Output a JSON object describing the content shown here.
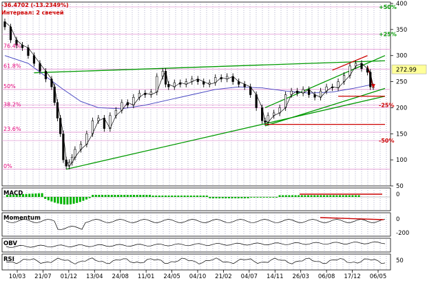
{
  "header": {
    "change": "-36.4702 (-13.2349%)",
    "interval": "Интервал: 2 свечей",
    "change_color": "#cc0000",
    "interval_color": "#cc0000"
  },
  "chart_data": [
    {
      "type": "candlestick",
      "name": "price",
      "ylim": [
        50,
        400
      ],
      "ytick_labels": [
        "50",
        "100",
        "150",
        "200",
        "250",
        "300",
        "350",
        "400"
      ],
      "ytick_values": [
        50,
        100,
        150,
        200,
        250,
        300,
        350,
        400
      ],
      "xtick_labels": [
        "10/03",
        "21/07",
        "01/12",
        "13/04",
        "24/08",
        "11/01",
        "24/05",
        "04/10",
        "21/02",
        "04/07",
        "14/11",
        "26/03",
        "06/08",
        "17/12",
        "06/05"
      ],
      "last_price": "272.99",
      "last_price_color": "#ffff99",
      "fibonacci_levels": [
        {
          "label": "76.4%",
          "value": 312
        },
        {
          "label": "61.8%",
          "value": 274
        },
        {
          "label": "50%",
          "value": 235
        },
        {
          "label": "38.2%",
          "value": 200
        },
        {
          "label": "23.6%",
          "value": 153
        },
        {
          "label": "0%",
          "value": 82
        }
      ],
      "percent_levels": [
        {
          "label": "+50%",
          "value": 410,
          "color": "#009900"
        },
        {
          "label": "+25%",
          "value": 341,
          "color": "#009900"
        },
        {
          "label": "-25%",
          "value": 205,
          "color": "#cc0000"
        },
        {
          "label": "-50%",
          "value": 137,
          "color": "#cc0000"
        }
      ],
      "price_series": [
        {
          "x": 0,
          "y": 365
        },
        {
          "x": 2,
          "y": 355
        },
        {
          "x": 4,
          "y": 330
        },
        {
          "x": 6,
          "y": 320
        },
        {
          "x": 8,
          "y": 315
        },
        {
          "x": 10,
          "y": 300
        },
        {
          "x": 12,
          "y": 285
        },
        {
          "x": 14,
          "y": 270
        },
        {
          "x": 16,
          "y": 255
        },
        {
          "x": 17,
          "y": 240
        },
        {
          "x": 18,
          "y": 210
        },
        {
          "x": 19,
          "y": 180
        },
        {
          "x": 20,
          "y": 150
        },
        {
          "x": 21,
          "y": 100
        },
        {
          "x": 22,
          "y": 88
        },
        {
          "x": 23,
          "y": 95
        },
        {
          "x": 24,
          "y": 105
        },
        {
          "x": 26,
          "y": 120
        },
        {
          "x": 28,
          "y": 130
        },
        {
          "x": 30,
          "y": 150
        },
        {
          "x": 32,
          "y": 175
        },
        {
          "x": 34,
          "y": 180
        },
        {
          "x": 36,
          "y": 160
        },
        {
          "x": 38,
          "y": 185
        },
        {
          "x": 40,
          "y": 195
        },
        {
          "x": 42,
          "y": 210
        },
        {
          "x": 44,
          "y": 205
        },
        {
          "x": 46,
          "y": 220
        },
        {
          "x": 48,
          "y": 228
        },
        {
          "x": 50,
          "y": 225
        },
        {
          "x": 52,
          "y": 230
        },
        {
          "x": 54,
          "y": 260
        },
        {
          "x": 55,
          "y": 270
        },
        {
          "x": 56,
          "y": 245
        },
        {
          "x": 58,
          "y": 240
        },
        {
          "x": 60,
          "y": 248
        },
        {
          "x": 62,
          "y": 245
        },
        {
          "x": 64,
          "y": 250
        },
        {
          "x": 66,
          "y": 255
        },
        {
          "x": 68,
          "y": 250
        },
        {
          "x": 70,
          "y": 245
        },
        {
          "x": 72,
          "y": 248
        },
        {
          "x": 74,
          "y": 258
        },
        {
          "x": 76,
          "y": 255
        },
        {
          "x": 78,
          "y": 260
        },
        {
          "x": 80,
          "y": 250
        },
        {
          "x": 82,
          "y": 245
        },
        {
          "x": 84,
          "y": 240
        },
        {
          "x": 86,
          "y": 225
        },
        {
          "x": 88,
          "y": 200
        },
        {
          "x": 89,
          "y": 175
        },
        {
          "x": 90,
          "y": 172
        },
        {
          "x": 92,
          "y": 185
        },
        {
          "x": 94,
          "y": 190
        },
        {
          "x": 96,
          "y": 200
        },
        {
          "x": 98,
          "y": 225
        },
        {
          "x": 100,
          "y": 232
        },
        {
          "x": 102,
          "y": 228
        },
        {
          "x": 104,
          "y": 235
        },
        {
          "x": 106,
          "y": 225
        },
        {
          "x": 108,
          "y": 220
        },
        {
          "x": 110,
          "y": 232
        },
        {
          "x": 112,
          "y": 240
        },
        {
          "x": 114,
          "y": 238
        },
        {
          "x": 116,
          "y": 250
        },
        {
          "x": 118,
          "y": 262
        },
        {
          "x": 120,
          "y": 280
        },
        {
          "x": 122,
          "y": 285
        },
        {
          "x": 124,
          "y": 275
        },
        {
          "x": 125,
          "y": 268
        },
        {
          "x": 126,
          "y": 240
        }
      ],
      "ma_series": [
        {
          "x": 0,
          "y": 300
        },
        {
          "x": 8,
          "y": 285
        },
        {
          "x": 14,
          "y": 260
        },
        {
          "x": 20,
          "y": 235
        },
        {
          "x": 26,
          "y": 212
        },
        {
          "x": 32,
          "y": 200
        },
        {
          "x": 40,
          "y": 198
        },
        {
          "x": 48,
          "y": 205
        },
        {
          "x": 56,
          "y": 215
        },
        {
          "x": 64,
          "y": 225
        },
        {
          "x": 72,
          "y": 235
        },
        {
          "x": 80,
          "y": 240
        },
        {
          "x": 88,
          "y": 238
        },
        {
          "x": 96,
          "y": 232
        },
        {
          "x": 104,
          "y": 228
        },
        {
          "x": 112,
          "y": 230
        },
        {
          "x": 120,
          "y": 238
        },
        {
          "x": 126,
          "y": 245
        }
      ],
      "trendlines": [
        {
          "x1": 21,
          "y1": 82,
          "x2": 130,
          "y2": 222,
          "color": "#009900"
        },
        {
          "x1": 89,
          "y1": 165,
          "x2": 130,
          "y2": 237,
          "color": "#009900"
        },
        {
          "x1": 89,
          "y1": 200,
          "x2": 130,
          "y2": 300,
          "color": "#009900"
        },
        {
          "x1": 10,
          "y1": 267,
          "x2": 130,
          "y2": 290,
          "color": "#009900"
        },
        {
          "x1": 112,
          "y1": 272,
          "x2": 124,
          "y2": 300,
          "color": "#cc0000"
        },
        {
          "x1": 124,
          "y1": 280,
          "x2": 126,
          "y2": 240,
          "color": "#cc0000"
        },
        {
          "x1": 114,
          "y1": 222,
          "x2": 130,
          "y2": 222,
          "color": "#cc0000"
        },
        {
          "x1": 89,
          "y1": 168,
          "x2": 130,
          "y2": 168,
          "color": "#cc0000"
        }
      ]
    },
    {
      "type": "bar",
      "name": "MACD",
      "label": "MACD",
      "ytick_labels": [
        "0"
      ],
      "ytick_values": [
        0
      ]
    },
    {
      "type": "line",
      "name": "Momentum",
      "label": "Momentum",
      "ytick_labels": [
        "0",
        "-200"
      ],
      "ytick_values": [
        0,
        -200
      ]
    },
    {
      "type": "line",
      "name": "OBV",
      "label": "OBV",
      "ytick_labels": [],
      "ytick_values": []
    },
    {
      "type": "line",
      "name": "RSI",
      "label": "RSI",
      "ytick_labels": [
        "50"
      ],
      "ytick_values": [
        50
      ]
    }
  ]
}
